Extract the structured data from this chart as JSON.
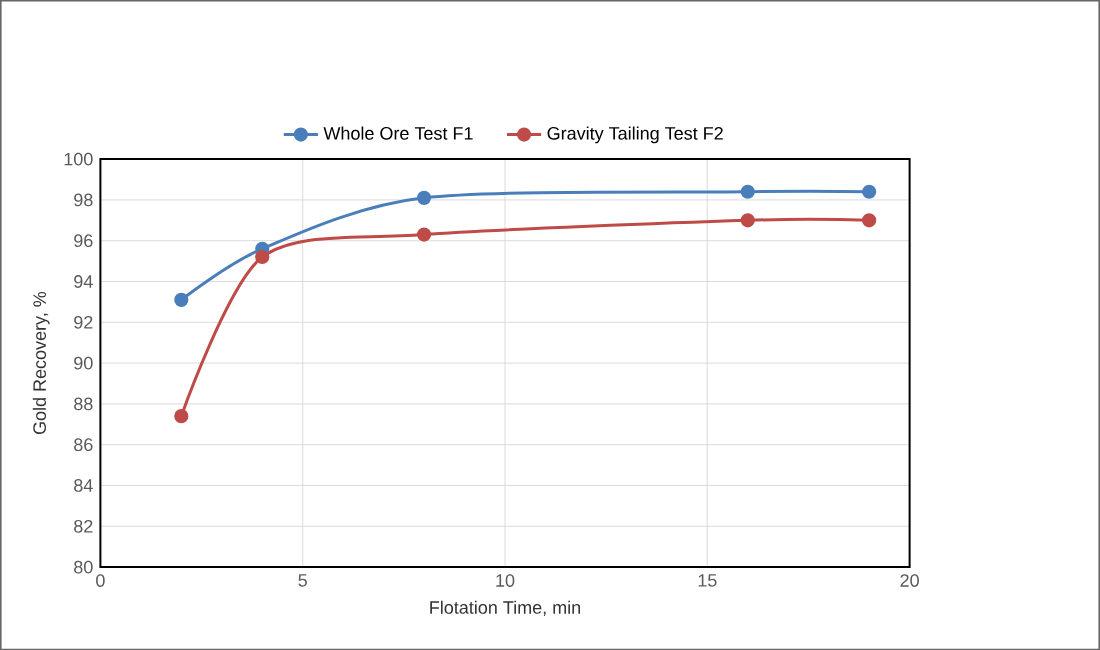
{
  "chart_data": {
    "type": "line",
    "xlabel": "Flotation Time, min",
    "ylabel": "Gold Recovery, %",
    "x": [
      2,
      4,
      8,
      16,
      19
    ],
    "series": [
      {
        "name": "Whole Ore Test F1",
        "color": "#4a7ebb",
        "values": [
          93.1,
          95.6,
          98.1,
          98.4,
          98.4
        ]
      },
      {
        "name": "Gravity Tailing Test F2",
        "color": "#be4b48",
        "values": [
          87.4,
          95.2,
          96.3,
          97.0,
          97.0
        ]
      }
    ],
    "xlim": [
      0,
      20
    ],
    "xticks": [
      0,
      5,
      10,
      15,
      20
    ],
    "ylim": [
      80,
      100
    ],
    "yticks": [
      80,
      82,
      84,
      86,
      88,
      90,
      92,
      94,
      96,
      98,
      100
    ],
    "grid": true,
    "legend": "top",
    "marker": "circle",
    "line_style": "solid"
  }
}
